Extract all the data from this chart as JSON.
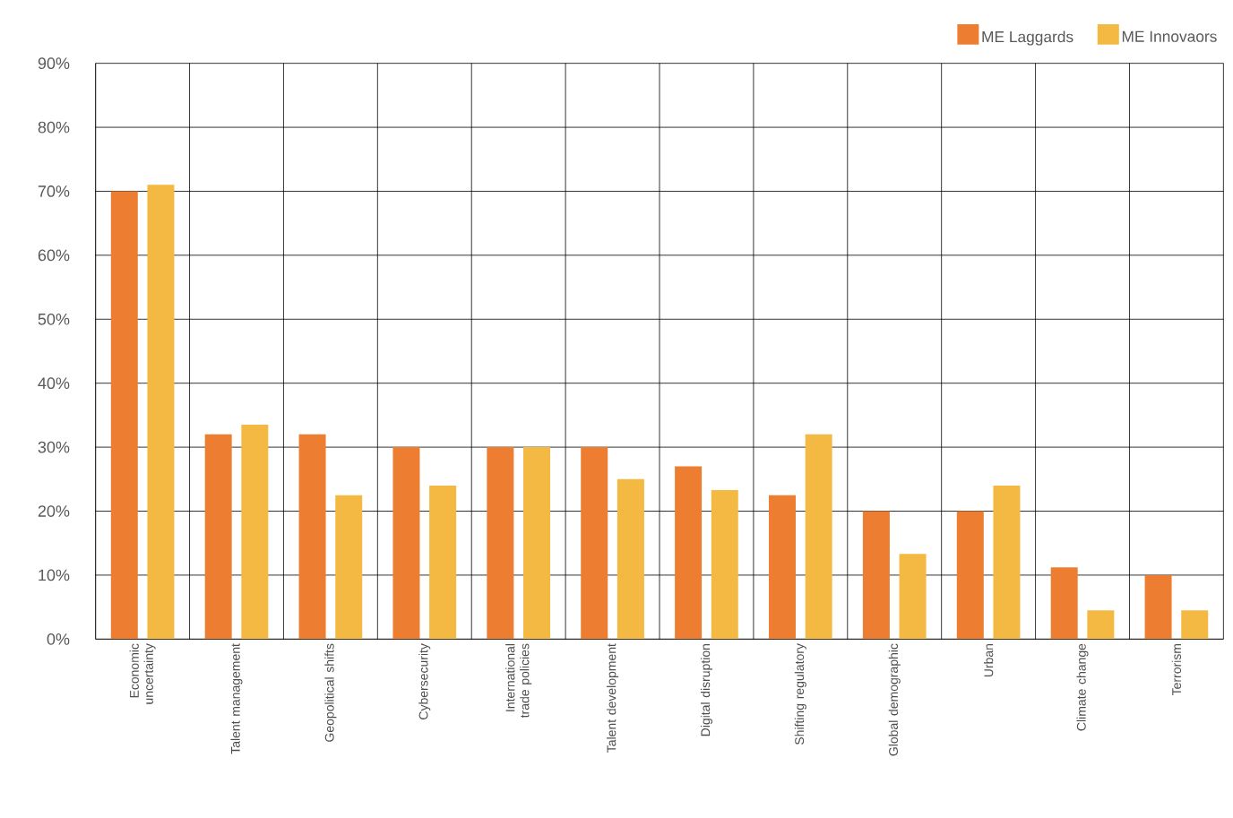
{
  "chart_data": {
    "type": "bar",
    "categories": [
      "Economic uncertainty",
      "Talent management",
      "Geopolitical shifts",
      "Cybersecurity",
      "International trade policies",
      "Talent development",
      "Digital disruption",
      "Shifting regulatory",
      "Global demographic",
      "Urban",
      "Climate change",
      "Terrorism"
    ],
    "series": [
      {
        "name": "ME Laggards",
        "color": "#ed7d31",
        "values": [
          70,
          32,
          32,
          30,
          30,
          30,
          27,
          22.5,
          20,
          20,
          11.2,
          10
        ]
      },
      {
        "name": "ME Innovaors",
        "color": "#f4b942",
        "values": [
          71,
          33.5,
          22.5,
          24,
          30,
          25,
          23.3,
          32,
          13.3,
          24,
          4.5,
          4.5
        ]
      }
    ],
    "ylim": [
      0,
      90
    ],
    "yticks": [
      {
        "value": 0,
        "label": "0%"
      },
      {
        "value": 10,
        "label": "10%"
      },
      {
        "value": 20,
        "label": "20%"
      },
      {
        "value": 30,
        "label": "30%"
      },
      {
        "value": 40,
        "label": "40%"
      },
      {
        "value": 50,
        "label": "50%"
      },
      {
        "value": 60,
        "label": "60%"
      },
      {
        "value": 70,
        "label": "70%"
      },
      {
        "value": 80,
        "label": "80%"
      },
      {
        "value": 90,
        "label": "90%"
      }
    ],
    "grid": true,
    "legend": "top right"
  }
}
